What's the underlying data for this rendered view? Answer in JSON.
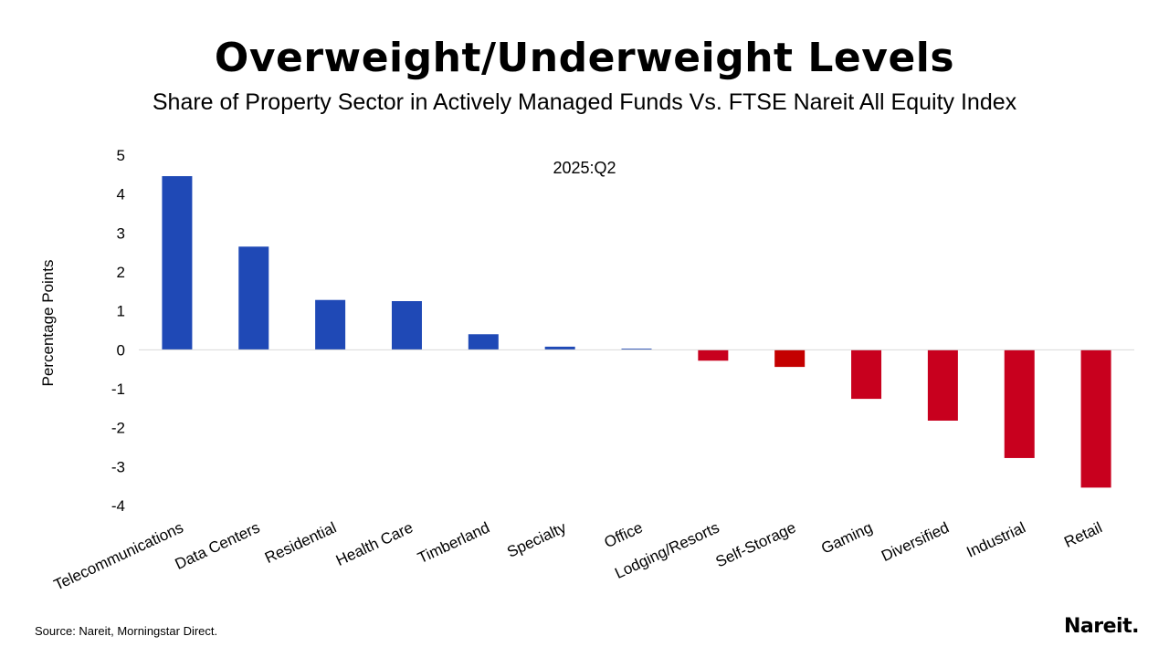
{
  "title": "Overweight/Underweight Levels",
  "subtitle": "Share of Property Sector in Actively Managed Funds Vs. FTSE Nareit All Equity Index",
  "source": "Source: Nareit, Morningstar Direct.",
  "logo_text": "Nareit.",
  "chart_data": {
    "type": "bar",
    "annotation": "2025:Q2",
    "ylabel": "Percentage Points",
    "xlabel": "",
    "ylim": [
      -4,
      5
    ],
    "yticks": [
      5,
      4,
      3,
      2,
      1,
      0,
      -1,
      -2,
      -3,
      -4
    ],
    "grid": false,
    "colors": {
      "positive": "#1f49b6",
      "negative": "#c8001e",
      "highlight": "#c40000",
      "zero_line": "#d9d9d9"
    },
    "categories": [
      "Telecommunications",
      "Data Centers",
      "Residential",
      "Health Care",
      "Timberland",
      "Specialty",
      "Office",
      "Lodging/Resorts",
      "Self-Storage",
      "Gaming",
      "Diversified",
      "Industrial",
      "Retail"
    ],
    "values": [
      4.46,
      2.65,
      1.28,
      1.25,
      0.4,
      0.08,
      0.03,
      -0.28,
      -0.44,
      -1.26,
      -1.82,
      -2.78,
      -3.54
    ]
  }
}
